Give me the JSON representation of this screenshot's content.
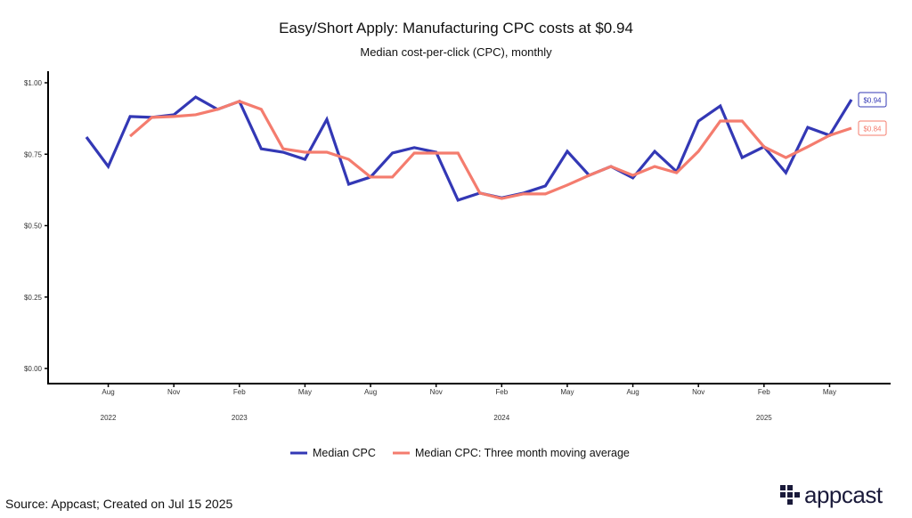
{
  "chart_data": {
    "type": "line",
    "title": "Easy/Short Apply: Manufacturing CPC costs at $0.94",
    "subtitle": "Median cost-per-click (CPC), monthly",
    "xlabel": "",
    "ylabel": "",
    "ylim": [
      0,
      1.0
    ],
    "y_ticks": [
      0,
      0.25,
      0.5,
      0.75,
      1.0
    ],
    "y_tick_labels": [
      "$0.00",
      "$0.25",
      "$0.50",
      "$0.75",
      "$1.00"
    ],
    "x_start": "2022-07",
    "x_months": [
      "Jul 2022",
      "Aug 2022",
      "Sep 2022",
      "Oct 2022",
      "Nov 2022",
      "Dec 2022",
      "Jan 2023",
      "Feb 2023",
      "Mar 2023",
      "Apr 2023",
      "May 2023",
      "Jun 2023",
      "Jul 2023",
      "Aug 2023",
      "Sep 2023",
      "Oct 2023",
      "Nov 2023",
      "Dec 2023",
      "Jan 2024",
      "Feb 2024",
      "Mar 2024",
      "Apr 2024",
      "May 2024",
      "Jun 2024",
      "Jul 2024",
      "Aug 2024",
      "Sep 2024",
      "Oct 2024",
      "Nov 2024",
      "Dec 2024",
      "Jan 2025",
      "Feb 2025",
      "Mar 2025",
      "Apr 2025",
      "May 2025",
      "Jun 2025"
    ],
    "x_ticks": [
      {
        "month_index": 1,
        "label": "Aug"
      },
      {
        "month_index": 4,
        "label": "Nov"
      },
      {
        "month_index": 7,
        "label": "Feb"
      },
      {
        "month_index": 10,
        "label": "May"
      },
      {
        "month_index": 13,
        "label": "Aug"
      },
      {
        "month_index": 16,
        "label": "Nov"
      },
      {
        "month_index": 19,
        "label": "Feb"
      },
      {
        "month_index": 22,
        "label": "May"
      },
      {
        "month_index": 25,
        "label": "Aug"
      },
      {
        "month_index": 28,
        "label": "Nov"
      },
      {
        "month_index": 31,
        "label": "Feb"
      },
      {
        "month_index": 34,
        "label": "May"
      }
    ],
    "year_labels": [
      {
        "month_index": 1,
        "label": "2022"
      },
      {
        "month_index": 7,
        "label": "2023"
      },
      {
        "month_index": 19,
        "label": "2024"
      },
      {
        "month_index": 31,
        "label": "2025"
      }
    ],
    "series": [
      {
        "name": "Median CPC",
        "color": "#3338b5",
        "start_index": 0,
        "values": [
          0.81,
          0.707,
          0.882,
          0.879,
          0.888,
          0.95,
          0.907,
          0.935,
          0.769,
          0.757,
          0.732,
          0.872,
          0.645,
          0.67,
          0.754,
          0.773,
          0.757,
          0.589,
          0.614,
          0.597,
          0.614,
          0.639,
          0.76,
          0.676,
          0.707,
          0.667,
          0.76,
          0.689,
          0.866,
          0.919,
          0.738,
          0.776,
          0.685,
          0.844,
          0.816,
          0.941
        ],
        "end_label": "$0.94"
      },
      {
        "name": "Median CPC: Three month moving average",
        "color": "#f47c6e",
        "start_index": 2,
        "values": [
          0.813,
          0.879,
          0.882,
          0.888,
          0.907,
          0.935,
          0.907,
          0.769,
          0.757,
          0.757,
          0.732,
          0.67,
          0.67,
          0.754,
          0.754,
          0.754,
          0.614,
          0.595,
          0.611,
          0.611,
          0.642,
          0.676,
          0.707,
          0.676,
          0.707,
          0.685,
          0.76,
          0.866,
          0.866,
          0.776,
          0.738,
          0.776,
          0.816,
          0.841
        ],
        "end_label": "$0.84"
      }
    ],
    "legend_position": "bottom",
    "grid": false
  },
  "footer": {
    "source": "Source: Appcast; Created on Jul 15 2025",
    "logo_text": "appcast"
  }
}
